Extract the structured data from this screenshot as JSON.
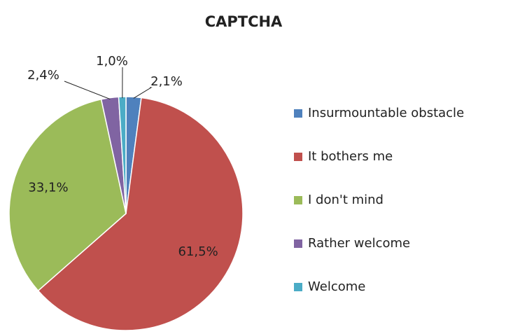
{
  "chart_data": {
    "type": "pie",
    "title": "CAPTCHA",
    "categories": [
      "Insurmountable obstacle",
      "It bothers me",
      "I don't mind",
      "Rather welcome",
      "Welcome"
    ],
    "values": [
      2.1,
      61.5,
      33.1,
      2.4,
      1.0
    ],
    "value_labels": [
      "2,1%",
      "61,5%",
      "33,1%",
      "2,4%",
      "1,0%"
    ],
    "colors": [
      "#4f81bd",
      "#c0504d",
      "#9bbb59",
      "#8064a2",
      "#4bacc6"
    ],
    "legend": "right"
  }
}
